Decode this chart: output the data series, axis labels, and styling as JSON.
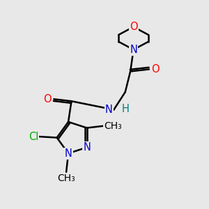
{
  "bg_color": "#e8e8e8",
  "bond_color": "#000000",
  "line_width": 1.8,
  "atom_colors": {
    "O": "#ff0000",
    "N": "#0000cc",
    "Cl": "#00aa00",
    "H": "#008080",
    "C": "#000000"
  },
  "font_size": 10.5
}
